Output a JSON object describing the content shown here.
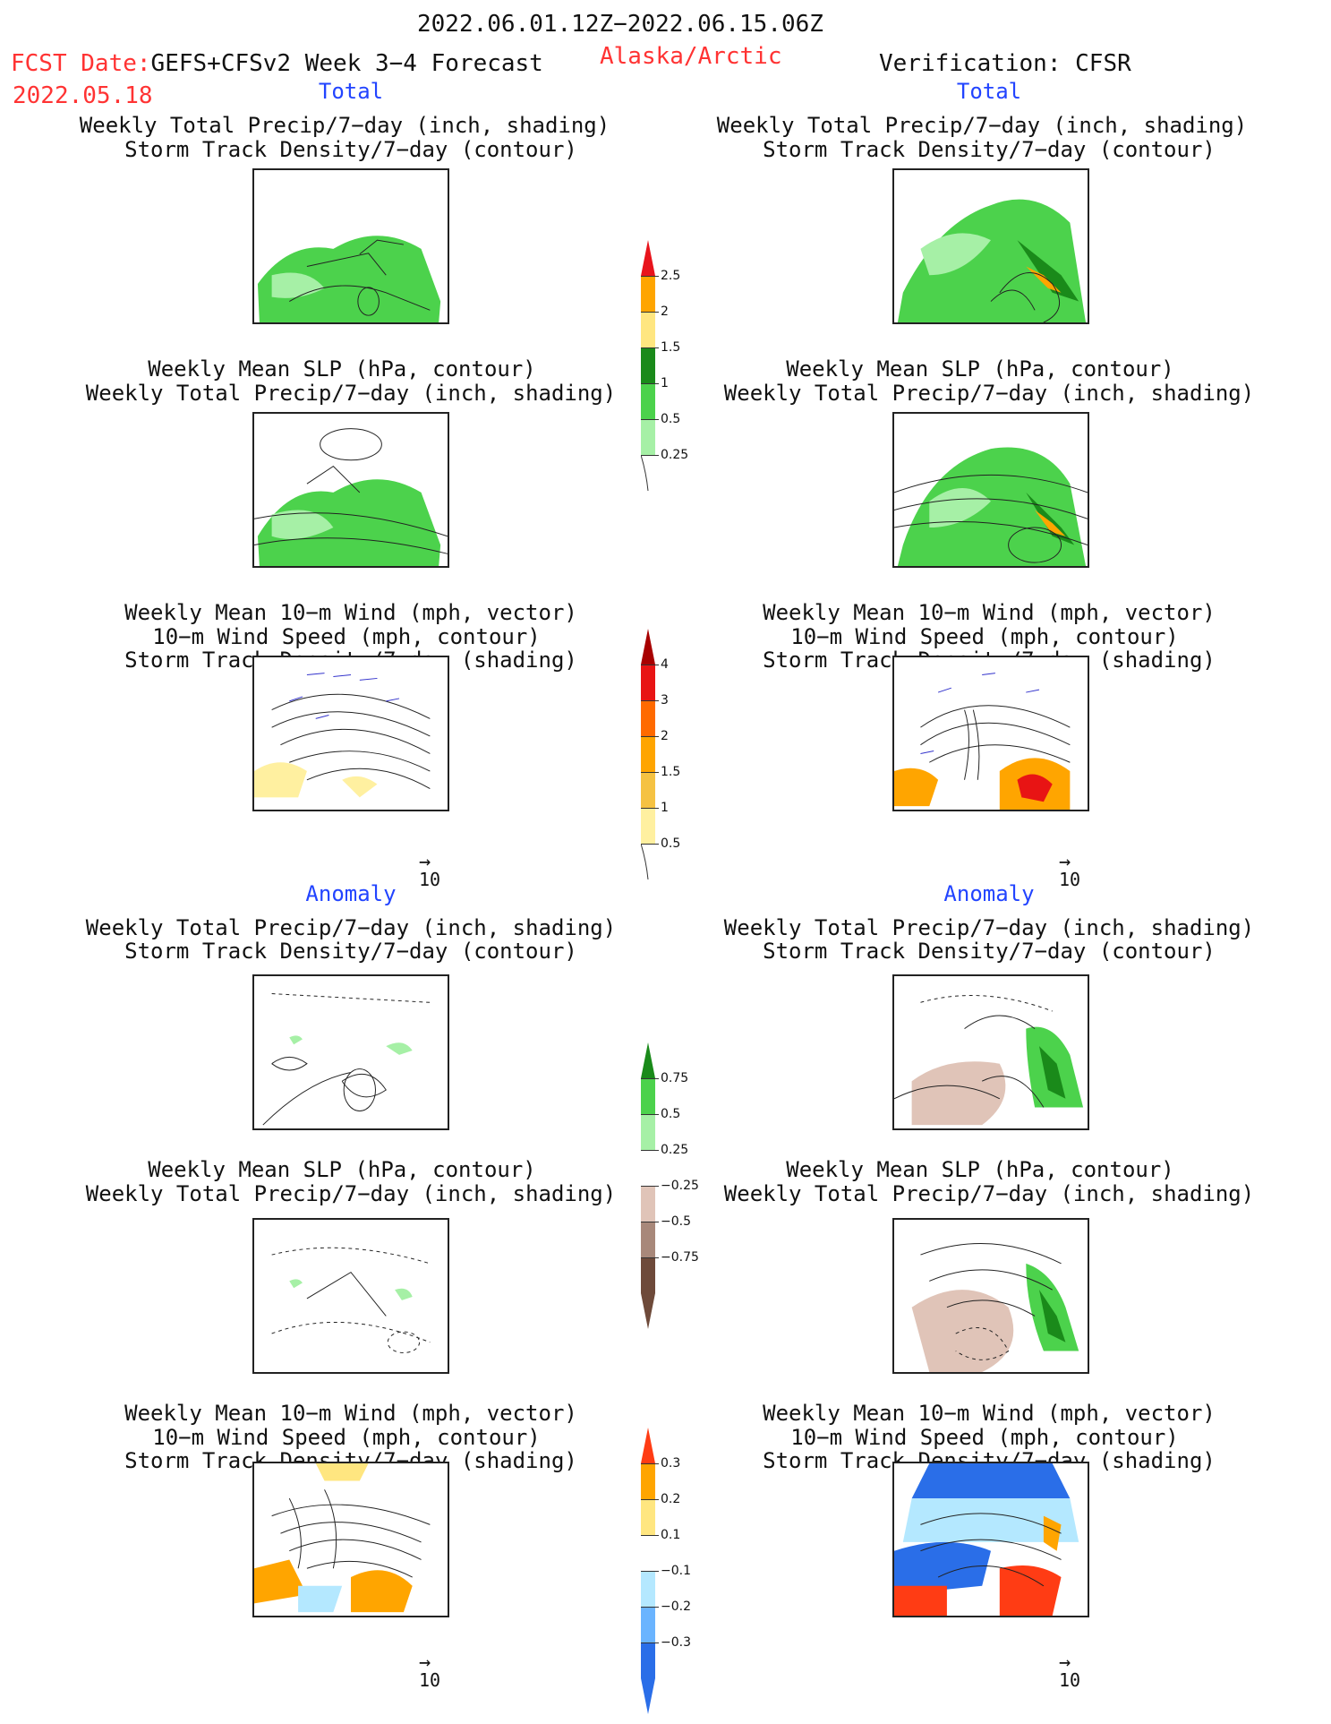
{
  "header": {
    "period": "2022.06.01.12Z−2022.06.15.06Z",
    "fcst_label": "FCST Date:",
    "fcst_source": "GEFS+CFSv2 Week 3−4 Forecast",
    "fcst_date": "2022.05.18",
    "region": "Alaska/Arctic",
    "verification": "Verification: CFSR"
  },
  "sections": {
    "total": "Total",
    "anomaly": "Anomaly"
  },
  "titles": {
    "precip_track": [
      "Weekly Total Precip/7−day (inch, shading)",
      "Storm Track Density/7−day (contour)"
    ],
    "slp_precip": [
      "Weekly Mean SLP (hPa, contour)",
      "Weekly Total Precip/7−day (inch, shading)"
    ],
    "wind": [
      "Weekly Mean 10−m Wind (mph, vector)",
      "10−m Wind Speed (mph, contour)",
      "Storm Track Density/7−day (shading)"
    ]
  },
  "vector_ref": "10",
  "colorbars": {
    "precip_total": {
      "labels": [
        "2.5",
        "2",
        "1.5",
        "1",
        "0.5",
        "0.25"
      ],
      "colors": [
        "#e8141c",
        "#ffa500",
        "#ffe680",
        "#1a8a1a",
        "#4cd24c",
        "#a6f0a6"
      ]
    },
    "track_total": {
      "labels": [
        "4",
        "3",
        "2",
        "1.5",
        "1",
        "0.5"
      ],
      "colors": [
        "#a80000",
        "#e81414",
        "#ff6a00",
        "#ffa500",
        "#f5c242",
        "#fff0a0"
      ]
    },
    "precip_anom": {
      "labels": [
        "0.75",
        "0.5",
        "0.25",
        "−0.25",
        "−0.5",
        "−0.75"
      ],
      "colors": [
        "#1a8a1a",
        "#4cd24c",
        "#a6f0a6",
        "#ffffff",
        "#e0c4b8",
        "#a8887a",
        "#6e4a3a"
      ]
    },
    "track_anom": {
      "labels": [
        "0.3",
        "0.2",
        "0.1",
        "−0.1",
        "−0.2",
        "−0.3"
      ],
      "colors": [
        "#ff3c14",
        "#ffa500",
        "#ffe680",
        "#ffffff",
        "#b4e8ff",
        "#6ab4ff",
        "#2a6ee8"
      ]
    }
  }
}
